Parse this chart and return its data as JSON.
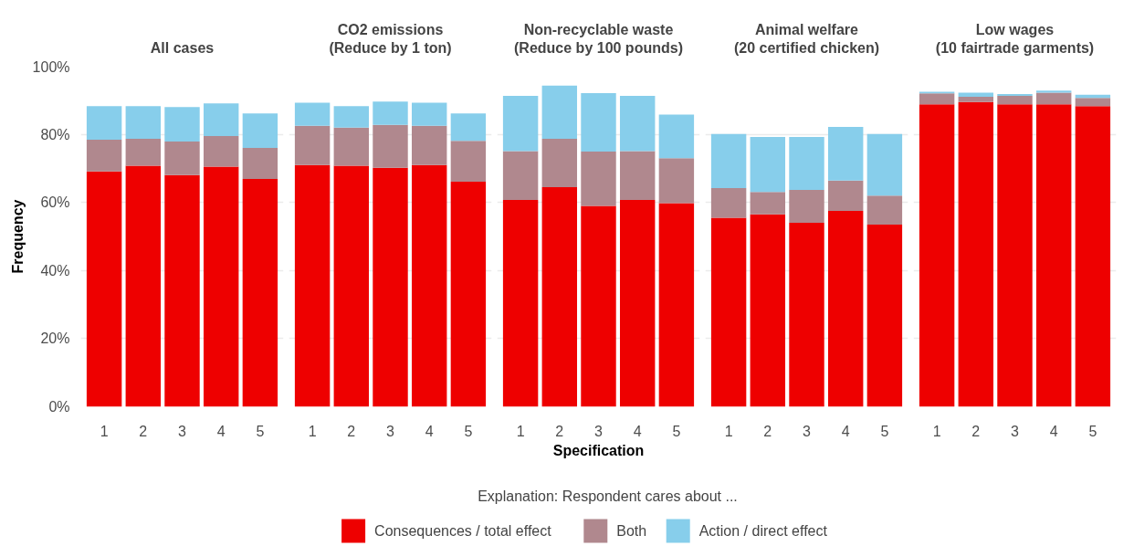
{
  "chart_data": [
    {
      "type": "bar",
      "stacked": true,
      "title": "All cases",
      "ylabel": "Frequency",
      "categories": [
        "1",
        "2",
        "3",
        "4",
        "5"
      ],
      "ylim": [
        0,
        100
      ],
      "yticks": [
        {
          "value": 0,
          "label": "0%"
        },
        {
          "value": 20,
          "label": "20%"
        },
        {
          "value": 40,
          "label": "40%"
        },
        {
          "value": 60,
          "label": "60%"
        },
        {
          "value": 80,
          "label": "80%"
        },
        {
          "value": 100,
          "label": "100%"
        }
      ],
      "grid": "y",
      "series": [
        {
          "color": "#ee0000",
          "values": [
            69.1,
            70.8,
            68.0,
            70.5,
            66.9
          ]
        },
        {
          "color": "#b0888e",
          "values": [
            9.3,
            7.9,
            9.9,
            9.0,
            9.1
          ]
        },
        {
          "color": "#87ceeb",
          "values": [
            9.9,
            9.6,
            10.1,
            9.6,
            10.1
          ]
        }
      ]
    },
    {
      "type": "bar",
      "stacked": true,
      "title": "CO2 emissions\n(Reduce by 1 ton)",
      "categories": [
        "1",
        "2",
        "3",
        "4",
        "5"
      ],
      "ylim": [
        0,
        100
      ],
      "yticks": [
        0,
        20,
        40,
        60,
        80,
        100
      ],
      "grid": "y",
      "tick_labels": "x",
      "series": [
        {
          "color": "#ee0000",
          "values": [
            71.0,
            70.8,
            70.2,
            71.0,
            66.1
          ]
        },
        {
          "color": "#b0888e",
          "values": [
            11.5,
            11.2,
            12.6,
            11.5,
            12.0
          ]
        },
        {
          "color": "#87ceeb",
          "values": [
            6.8,
            6.3,
            6.8,
            6.8,
            8.0
          ]
        }
      ]
    },
    {
      "type": "bar",
      "stacked": true,
      "title": "Non-recyclable waste\n(Reduce by 100 pounds)",
      "xlabel": "Specification",
      "legend_title": "Explanation: Respondent cares about ...",
      "legend": "bottom",
      "categories": [
        "1",
        "2",
        "3",
        "4",
        "5"
      ],
      "ylim": [
        0,
        100
      ],
      "yticks": [
        0,
        20,
        40,
        60,
        80,
        100
      ],
      "grid": "y",
      "tick_labels": "x",
      "series": [
        {
          "name": "Consequences / total effect",
          "color": "#ee0000",
          "values": [
            60.7,
            64.5,
            59.0,
            60.7,
            59.8
          ]
        },
        {
          "name": "Both",
          "color": "#b0888e",
          "values": [
            14.4,
            14.2,
            15.9,
            14.4,
            13.2
          ]
        },
        {
          "name": "Action / direct effect",
          "color": "#87ceeb",
          "values": [
            16.2,
            15.6,
            17.2,
            16.2,
            12.8
          ]
        }
      ]
    },
    {
      "type": "bar",
      "stacked": true,
      "title": "Animal welfare\n(20 certified chicken)",
      "categories": [
        "1",
        "2",
        "3",
        "4",
        "5"
      ],
      "ylim": [
        0,
        100
      ],
      "yticks": [
        0,
        20,
        40,
        60,
        80,
        100
      ],
      "grid": "y",
      "tick_labels": "x",
      "series": [
        {
          "color": "#ee0000",
          "values": [
            55.5,
            56.5,
            54.0,
            57.5,
            53.5
          ]
        },
        {
          "color": "#b0888e",
          "values": [
            8.7,
            6.6,
            9.7,
            8.9,
            8.5
          ]
        },
        {
          "color": "#87ceeb",
          "values": [
            15.9,
            16.1,
            15.5,
            15.8,
            18.1
          ]
        }
      ]
    },
    {
      "type": "bar",
      "stacked": true,
      "title": "Low wages\n(10 fairtrade garments)",
      "categories": [
        "1",
        "2",
        "3",
        "4",
        "5"
      ],
      "ylim": [
        0,
        100
      ],
      "yticks": [
        0,
        20,
        40,
        60,
        80,
        100
      ],
      "grid": "y",
      "tick_labels": "x",
      "series": [
        {
          "color": "#ee0000",
          "values": [
            88.8,
            89.5,
            88.8,
            88.8,
            88.3
          ]
        },
        {
          "color": "#b0888e",
          "values": [
            3.2,
            1.5,
            2.5,
            3.4,
            2.4
          ]
        },
        {
          "color": "#87ceeb",
          "values": [
            0.5,
            1.2,
            0.5,
            0.6,
            0.9
          ]
        }
      ]
    }
  ]
}
